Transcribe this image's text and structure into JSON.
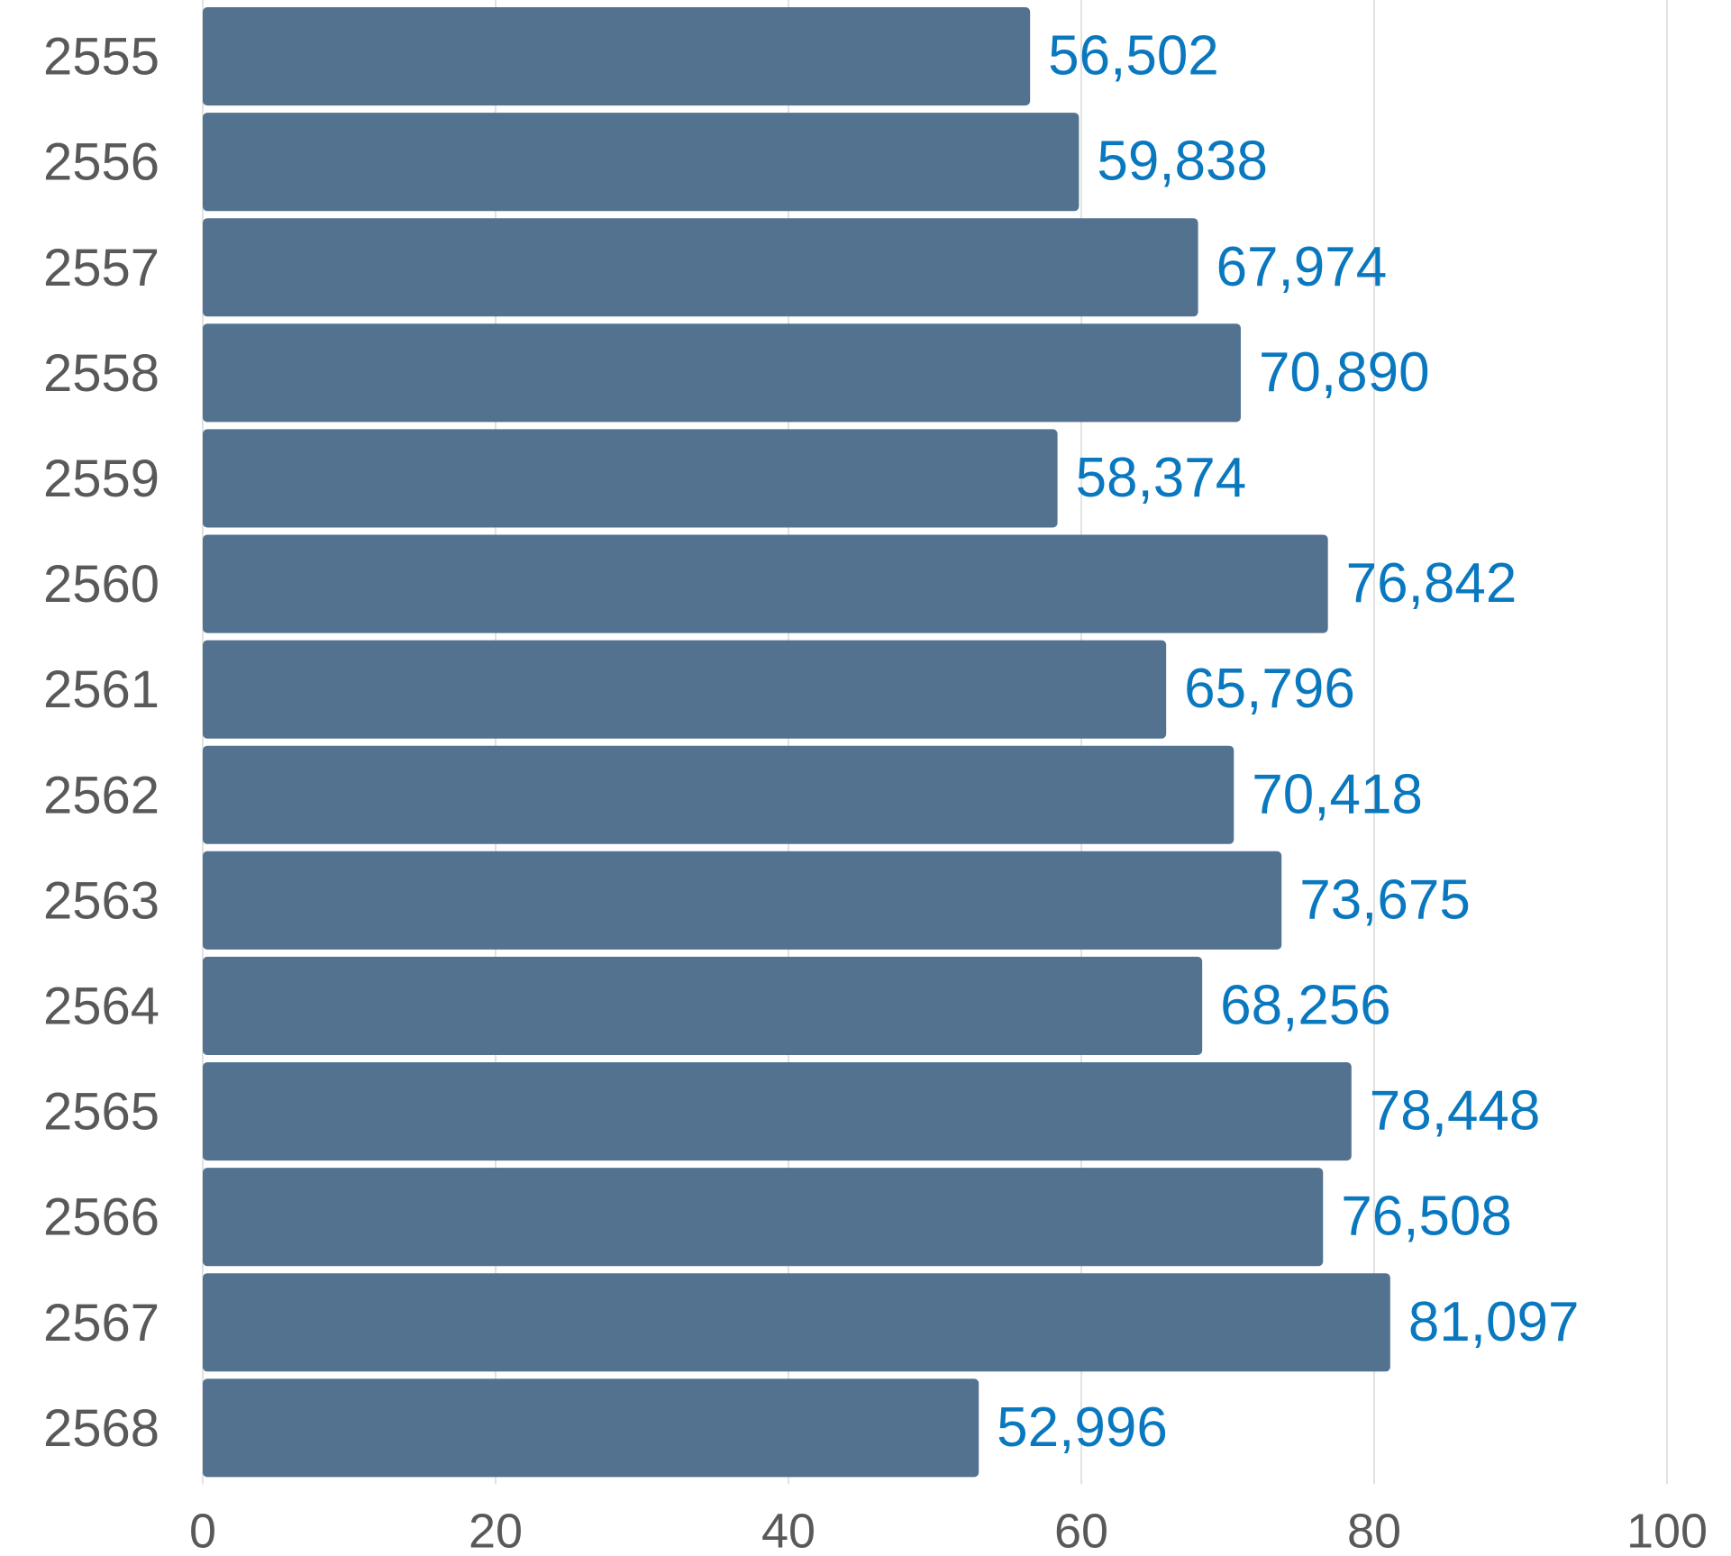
{
  "chart_data": {
    "type": "bar",
    "orientation": "horizontal",
    "title": "",
    "xlabel": "",
    "ylabel": "",
    "categories": [
      "2555",
      "2556",
      "2557",
      "2558",
      "2559",
      "2560",
      "2561",
      "2562",
      "2563",
      "2564",
      "2565",
      "2566",
      "2567",
      "2568"
    ],
    "values": [
      56.502,
      59.838,
      67.974,
      70.89,
      58.374,
      76.842,
      65.796,
      70.418,
      73.675,
      68.256,
      78.448,
      76.508,
      81.097,
      52.996
    ],
    "data_labels": [
      "56,502",
      "59,838",
      "67,974",
      "70,890",
      "58,374",
      "76,842",
      "65,796",
      "70,418",
      "73,675",
      "68,256",
      "78,448",
      "76,508",
      "81,097",
      "52,996"
    ],
    "xlim": [
      0,
      100
    ],
    "xticks": [
      0,
      20,
      40,
      60,
      80,
      100
    ],
    "xtick_labels": [
      "0",
      "20",
      "40",
      "60",
      "80",
      "100"
    ],
    "grid": "vertical",
    "legend": "none",
    "colors": {
      "bar": "#53728f",
      "data_label": "#0a78bf",
      "tick_label": "#595959",
      "grid": "#d9d9d9"
    }
  }
}
